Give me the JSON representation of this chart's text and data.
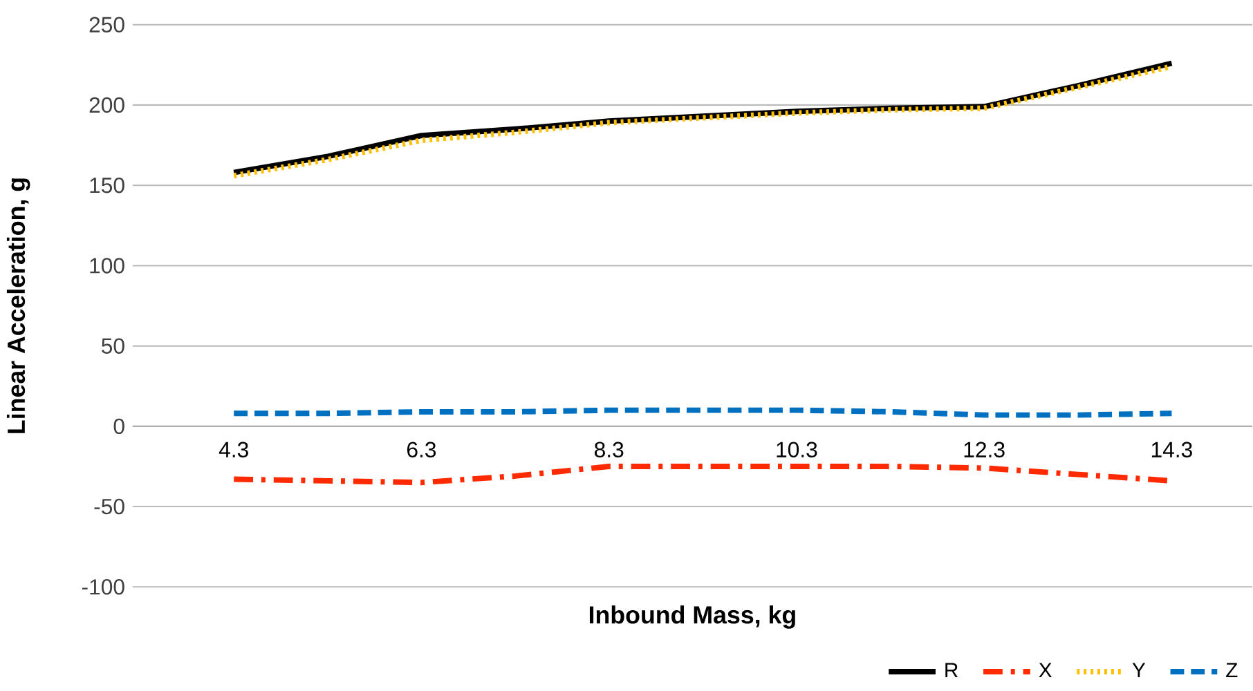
{
  "chart_data": {
    "type": "line",
    "xlabel": "Inbound Mass, kg",
    "ylabel": "Linear Acceleration, g",
    "categories": [
      "4.3",
      null,
      "6.3",
      null,
      "8.3",
      null,
      "10.3",
      null,
      "12.3",
      null,
      "14.3"
    ],
    "series": [
      {
        "name": "R",
        "color": "#000000",
        "line_style": "solid",
        "values": [
          158,
          168,
          181,
          185,
          190,
          193,
          196,
          198,
          199,
          212,
          226
        ]
      },
      {
        "name": "X",
        "color": "#ff2a00",
        "line_style": "dashdot",
        "values": [
          -33,
          -34,
          -35,
          -31,
          -25,
          -25,
          -25,
          -25,
          -26,
          -30,
          -34
        ]
      },
      {
        "name": "Y",
        "color": "#ffc000",
        "line_style": "dotted",
        "values": [
          156,
          166,
          178,
          183,
          189,
          192,
          195,
          197,
          198,
          211,
          224
        ]
      },
      {
        "name": "Z",
        "color": "#0070c0",
        "line_style": "dashed",
        "values": [
          8,
          8,
          9,
          9,
          10,
          10,
          10,
          9,
          7,
          7,
          8
        ]
      }
    ],
    "ylim": [
      -100,
      250
    ],
    "yticks": [
      -100,
      -50,
      0,
      50,
      100,
      150,
      200,
      250
    ],
    "grid": "y",
    "legend": "bottom right",
    "marker": "none"
  }
}
